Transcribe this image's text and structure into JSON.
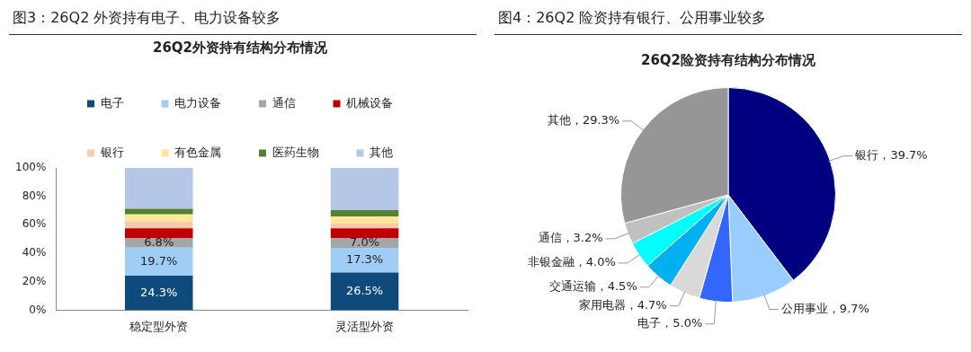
{
  "chart_data": [
    {
      "type": "bar",
      "title": "图3：26Q2 外资持有电子、电力设备较多",
      "subtitle": "26Q2外资持有结构分布情况",
      "categories": [
        "稳定型外资",
        "灵活型外资"
      ],
      "stacked": true,
      "legend": "top",
      "grid": false,
      "ylim": [
        0,
        100
      ],
      "yticks": [
        {
          "value": 0,
          "label": "0%"
        },
        {
          "value": 20,
          "label": "20%"
        },
        {
          "value": 40,
          "label": "40%"
        },
        {
          "value": 60,
          "label": "60%"
        },
        {
          "value": 80,
          "label": "80%"
        },
        {
          "value": 100,
          "label": "100%"
        }
      ],
      "series": [
        {
          "name": "电子",
          "color": "#0e4a7c",
          "values": [
            24.3,
            26.5
          ],
          "value_labels": [
            "24.3%",
            "26.5%"
          ]
        },
        {
          "name": "电力设备",
          "color": "#9fcdf5",
          "values": [
            19.7,
            17.3
          ],
          "value_labels": [
            "19.7%",
            "17.3%"
          ]
        },
        {
          "name": "通信",
          "color": "#a6a6a6",
          "values": [
            6.8,
            7.0
          ],
          "value_labels": [
            "6.8%",
            "7.0%"
          ]
        },
        {
          "name": "机械设备",
          "color": "#c00000",
          "values": [
            6.7,
            6.7
          ]
        },
        {
          "name": "银行",
          "color": "#f8cbad",
          "values": [
            4.9,
            3.3
          ]
        },
        {
          "name": "有色金属",
          "color": "#ffe699",
          "values": [
            4.9,
            5.1
          ]
        },
        {
          "name": "医药生物",
          "color": "#548235",
          "values": [
            4.0,
            4.4
          ]
        },
        {
          "name": "其他",
          "color": "#b4c7e7",
          "values": [
            28.7,
            29.7
          ]
        }
      ]
    },
    {
      "type": "pie",
      "title": "图4：26Q2 险资持有银行、公用事业较多",
      "subtitle": "26Q2险资持有结构分布情况",
      "categories": [
        "银行",
        "公用事业",
        "电子",
        "家用电器",
        "交通运输",
        "非银金融",
        "通信",
        "其他"
      ],
      "values": [
        39.7,
        9.7,
        5.0,
        4.7,
        4.5,
        4.0,
        3.2,
        29.3
      ],
      "colors": [
        "#000080",
        "#99ccff",
        "#3366ff",
        "#d9d9d9",
        "#00b0f0",
        "#00ffff",
        "#c0c0c0",
        "#969696"
      ],
      "value_labels": [
        "39.7%",
        "9.7%",
        "5.0%",
        "4.7%",
        "4.5%",
        "4.0%",
        "3.2%",
        "29.3%"
      ]
    }
  ]
}
